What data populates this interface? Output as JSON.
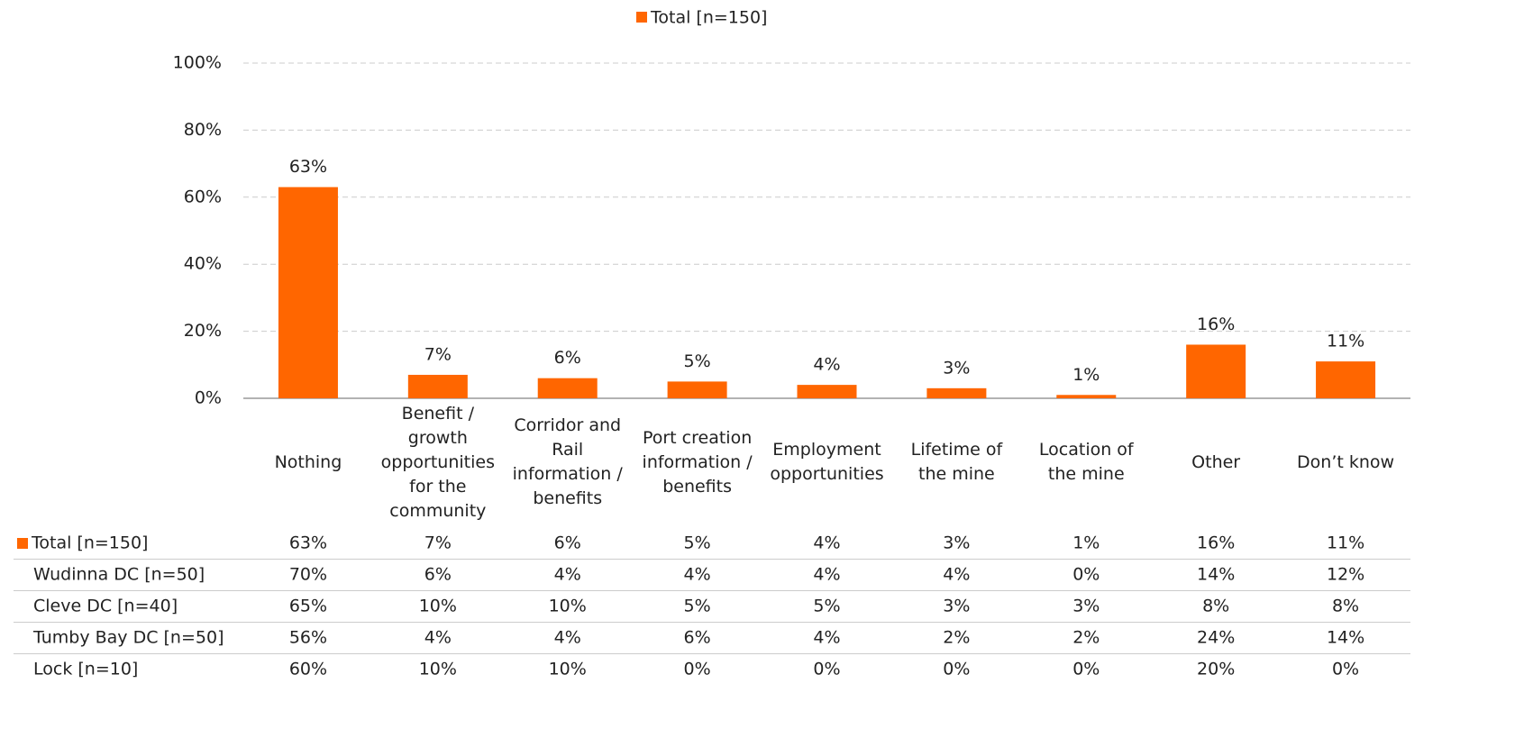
{
  "chart_data": {
    "type": "bar",
    "categories": [
      "Nothing",
      "Benefit / growth opportunities for the community",
      "Corridor and Rail information / benefits",
      "Port creation information / benefits",
      "Employment opportunities",
      "Lifetime of the mine",
      "Location of the mine",
      "Other",
      "Don’t know"
    ],
    "series": [
      {
        "name": "Total [n=150]",
        "color": "#ff6600",
        "values": [
          63,
          7,
          6,
          5,
          4,
          3,
          1,
          16,
          11
        ],
        "value_labels": [
          "63%",
          "7%",
          "6%",
          "5%",
          "4%",
          "3%",
          "1%",
          "16%",
          "11%"
        ]
      }
    ],
    "ylim": [
      0,
      100
    ],
    "yticks": [
      {
        "value": 0,
        "label": "0%"
      },
      {
        "value": 20,
        "label": "20%"
      },
      {
        "value": 40,
        "label": "40%"
      },
      {
        "value": 60,
        "label": "60%"
      },
      {
        "value": 80,
        "label": "80%"
      },
      {
        "value": 100,
        "label": "100%"
      }
    ],
    "grid": true,
    "legend": "top"
  },
  "table": {
    "rows": [
      {
        "name": "Wudinna DC [n=50]",
        "cells": [
          "70%",
          "6%",
          "4%",
          "4%",
          "4%",
          "4%",
          "0%",
          "14%",
          "12%"
        ]
      },
      {
        "name": "Cleve DC [n=40]",
        "cells": [
          "65%",
          "10%",
          "10%",
          "5%",
          "5%",
          "3%",
          "3%",
          "8%",
          "8%"
        ]
      },
      {
        "name": "Tumby Bay DC [n=50]",
        "cells": [
          "56%",
          "4%",
          "4%",
          "6%",
          "4%",
          "2%",
          "2%",
          "24%",
          "14%"
        ]
      },
      {
        "name": "Lock [n=10]",
        "cells": [
          "60%",
          "10%",
          "10%",
          "0%",
          "0%",
          "0%",
          "0%",
          "20%",
          "0%"
        ]
      }
    ]
  }
}
